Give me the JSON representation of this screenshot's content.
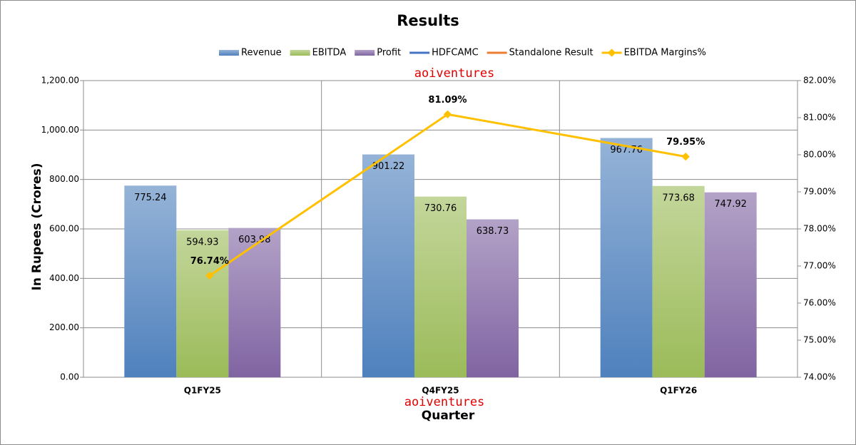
{
  "chart_data": {
    "type": "bar",
    "title": "Results",
    "x_label": "Quarter",
    "y_label": "In Rupees (Crores)",
    "annotations": [
      "aoiventures",
      "aoiventures"
    ],
    "categories": [
      "Q1FY25",
      "Q4FY25",
      "Q1FY26"
    ],
    "series": [
      {
        "name": "Revenue",
        "type": "bar",
        "color": "#4f81bd",
        "values": [
          775.24,
          901.22,
          967.76
        ]
      },
      {
        "name": "EBITDA",
        "type": "bar",
        "color": "#9bbb59",
        "values": [
          594.93,
          730.76,
          773.68
        ]
      },
      {
        "name": "Profit",
        "type": "bar",
        "color": "#8064a2",
        "values": [
          603.98,
          638.73,
          747.92
        ]
      },
      {
        "name": "HDFCAMC",
        "type": "line",
        "color": "#4472c4",
        "values": [
          null,
          null,
          null
        ]
      },
      {
        "name": "Standalone Result",
        "type": "line",
        "color": "#ed7d31",
        "values": [
          null,
          null,
          null
        ]
      },
      {
        "name": "EBITDA Margins%",
        "type": "line",
        "axis": "y2",
        "color": "#ffc000",
        "values": [
          76.74,
          81.09,
          79.95
        ],
        "value_labels": [
          "76.74%",
          "81.09%",
          "79.95%"
        ]
      }
    ],
    "ylim": [
      0,
      1200
    ],
    "yticks": [
      {
        "value": 0,
        "label": "0.00"
      },
      {
        "value": 200,
        "label": "200.00"
      },
      {
        "value": 400,
        "label": "400.00"
      },
      {
        "value": 600,
        "label": "600.00"
      },
      {
        "value": 800,
        "label": "800.00"
      },
      {
        "value": 1000,
        "label": "1,000.00"
      },
      {
        "value": 1200,
        "label": "1,200.00"
      }
    ],
    "y2lim": [
      74,
      82
    ],
    "y2ticks": [
      {
        "value": 74,
        "label": "74.00%"
      },
      {
        "value": 75,
        "label": "75.00%"
      },
      {
        "value": 76,
        "label": "76.00%"
      },
      {
        "value": 77,
        "label": "77.00%"
      },
      {
        "value": 78,
        "label": "78.00%"
      },
      {
        "value": 79,
        "label": "79.00%"
      },
      {
        "value": 80,
        "label": "80.00%"
      },
      {
        "value": 81,
        "label": "81.00%"
      },
      {
        "value": 82,
        "label": "82.00%"
      }
    ],
    "grid": true,
    "legend": "top"
  }
}
